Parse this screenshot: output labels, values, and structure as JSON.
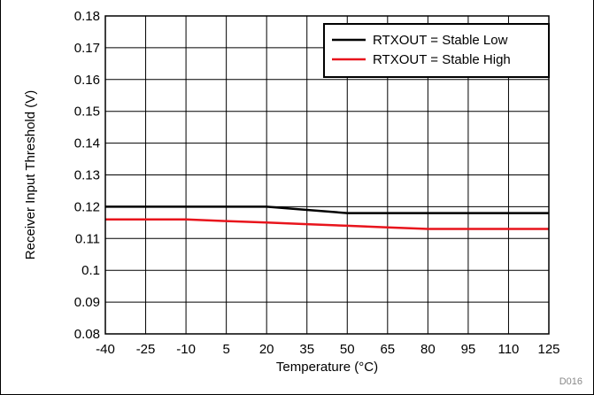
{
  "chart_data": {
    "type": "line",
    "title": "",
    "xlabel": "Temperature (°C)",
    "ylabel": "Receiver Input Threshold (V)",
    "xlim": [
      -40,
      125
    ],
    "ylim": [
      0.08,
      0.18
    ],
    "x_ticks": [
      -40,
      -25,
      -10,
      5,
      20,
      35,
      50,
      65,
      80,
      95,
      110,
      125
    ],
    "y_ticks": [
      "0.08",
      "0.09",
      "0.1",
      "0.11",
      "0.12",
      "0.13",
      "0.14",
      "0.15",
      "0.16",
      "0.17",
      "0.18"
    ],
    "grid": true,
    "legend_position": "top-right",
    "series": [
      {
        "name": "RTXOUT = Stable Low",
        "color": "#000000",
        "x": [
          -40,
          -25,
          -10,
          5,
          20,
          35,
          50,
          65,
          80,
          95,
          110,
          125
        ],
        "y": [
          0.12,
          0.12,
          0.12,
          0.12,
          0.12,
          0.119,
          0.118,
          0.118,
          0.118,
          0.118,
          0.118,
          0.118
        ]
      },
      {
        "name": "RTXOUT = Stable High",
        "color": "#e8141c",
        "x": [
          -40,
          -25,
          -10,
          5,
          20,
          35,
          50,
          65,
          80,
          95,
          110,
          125
        ],
        "y": [
          0.116,
          0.116,
          0.116,
          0.1155,
          0.115,
          0.1145,
          0.114,
          0.1135,
          0.113,
          0.113,
          0.113,
          0.113
        ]
      }
    ],
    "footnote": "D016"
  }
}
